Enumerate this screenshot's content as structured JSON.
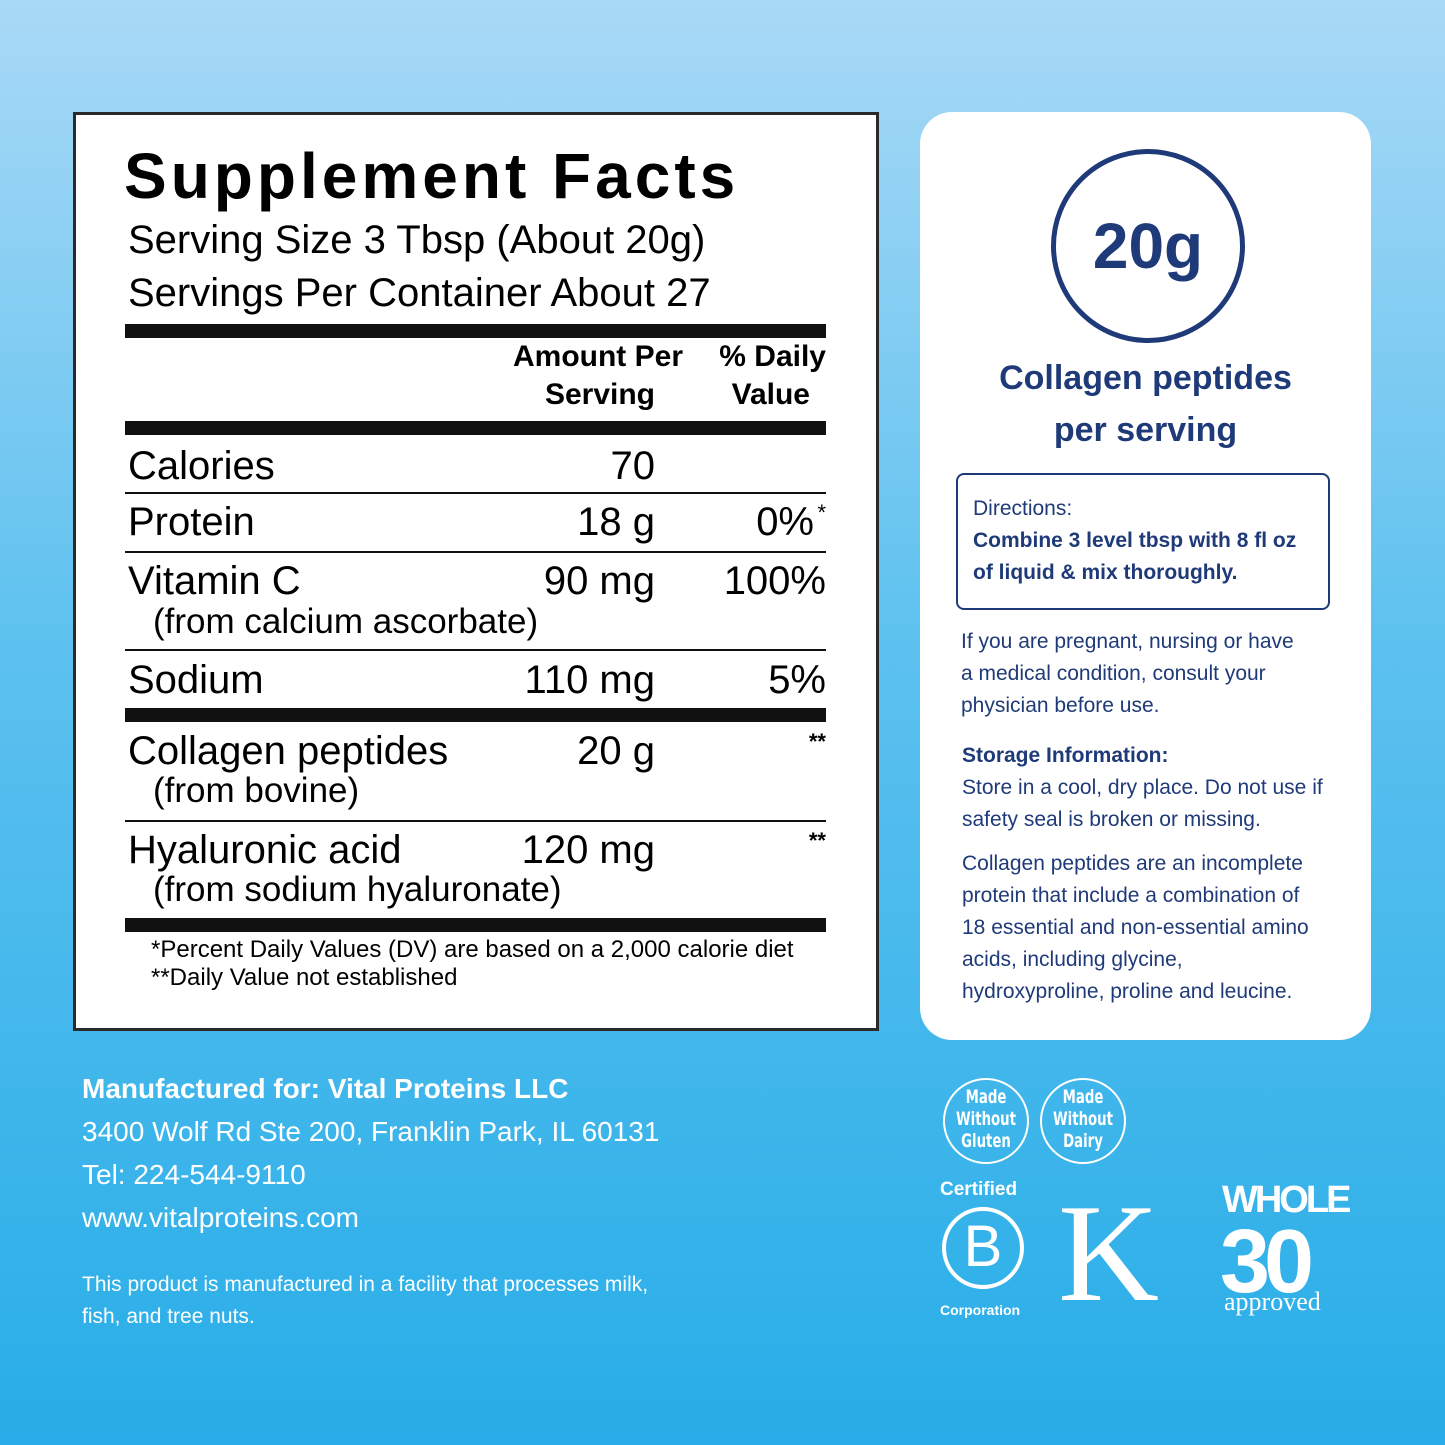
{
  "facts": {
    "title": "Supplement Facts",
    "serving_size": "Serving Size 3 Tbsp (About 20g)",
    "servings_per_container": "Servings Per Container About 27",
    "header_amount": [
      "Amount Per",
      "Serving"
    ],
    "header_dv": [
      "% Daily",
      "Value"
    ],
    "rows": [
      {
        "name": "Calories",
        "amount": "70"
      },
      {
        "name": "Protein",
        "amount": "18 g",
        "dv": "0%",
        "mark": "*"
      },
      {
        "name": "Vitamin C",
        "sub": "(from calcium ascorbate)",
        "amount": "90 mg",
        "dv": "100%"
      },
      {
        "name": "Sodium",
        "amount": "110 mg",
        "dv": "5%"
      },
      {
        "name": "Collagen peptides",
        "sub": "(from bovine)",
        "amount": "20 g",
        "mark": "**"
      },
      {
        "name": "Hyaluronic acid",
        "sub": "(from sodium hyaluronate)",
        "amount": "120 mg",
        "mark": "**"
      }
    ],
    "footnotes": [
      "*Percent Daily Values (DV) are based on a 2,000 calorie diet",
      "**Daily Value not established"
    ]
  },
  "panel": {
    "amount": "20g",
    "caption": [
      "Collagen peptides",
      "per serving"
    ],
    "directions_title": "Directions:",
    "directions": [
      "Combine 3 level tbsp with 8 fl oz",
      "of liquid & mix thoroughly."
    ],
    "warning": [
      "If you are pregnant, nursing or have",
      "a medical condition, consult your",
      "physician before use."
    ],
    "storage_title": "Storage Information:",
    "storage": [
      "Store in a cool, dry place. Do not use if",
      "safety seal is broken or missing."
    ],
    "info": [
      "Collagen peptides are an incomplete",
      "protein that include a combination of",
      "18 essential and non-essential amino",
      "acids, including glycine,",
      "hydroxyproline, proline and leucine."
    ]
  },
  "manufacturer": {
    "lines": [
      "Manufactured for: Vital Proteins LLC",
      "3400 Wolf Rd Ste 200, Franklin Park, IL 60131",
      "Tel: 224-544-9110",
      "www.vitalproteins.com"
    ],
    "allergen": [
      "This product is manufactured in a facility that processes milk,",
      "fish, and tree nuts."
    ]
  },
  "badges": {
    "gluten": [
      "Made",
      "Without",
      "Gluten"
    ],
    "dairy": [
      "Made",
      "Without",
      "Dairy"
    ],
    "bcorp": [
      "Certified",
      "B",
      "Corporation"
    ],
    "kosher": "K",
    "whole30": [
      "WHOLE",
      "30",
      "approved"
    ]
  }
}
